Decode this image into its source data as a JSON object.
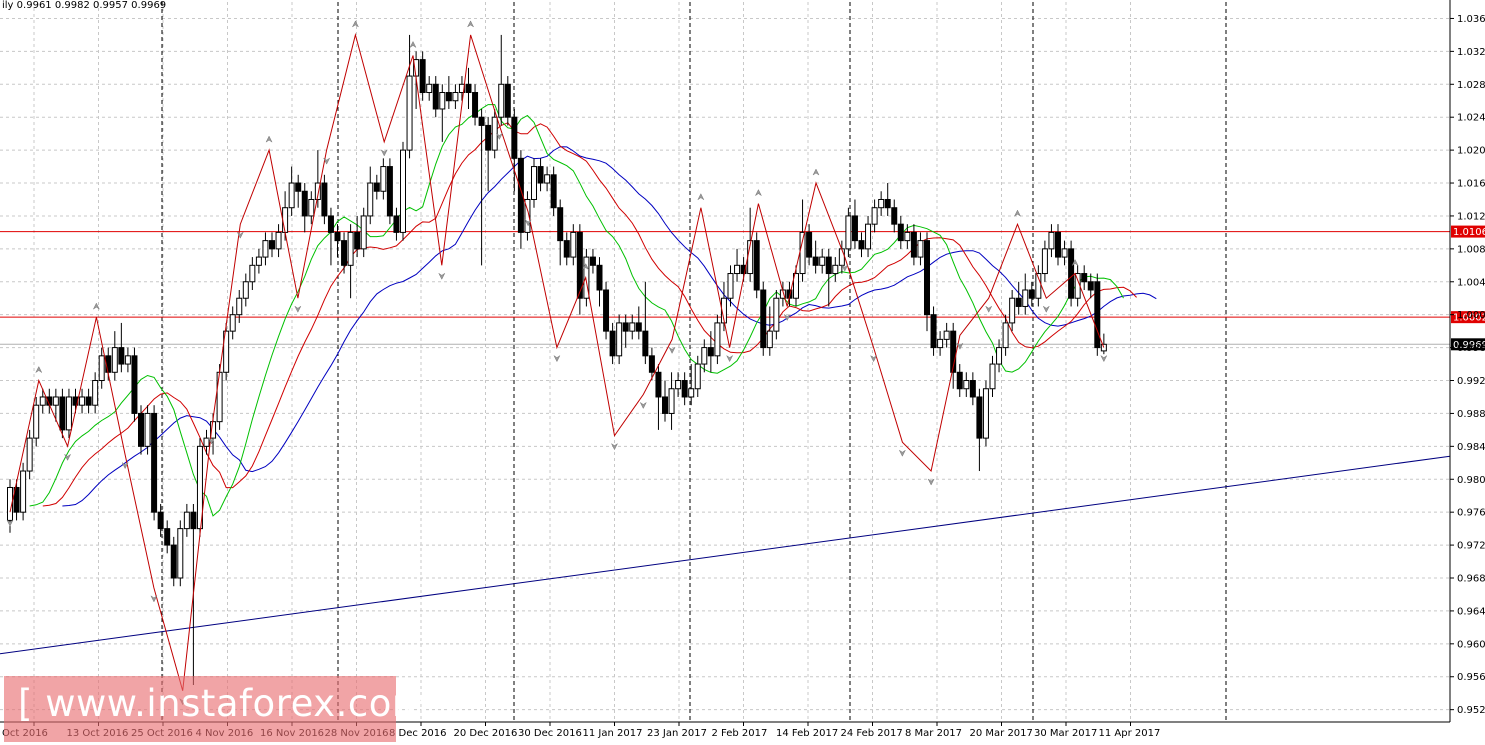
{
  "header": {
    "symbol_period": "ily",
    "ohlc": "0.9961 0.9982 0.9957 0.9969"
  },
  "watermark": {
    "text": "[ www.instaforex.com ]"
  },
  "colors": {
    "background": "#ffffff",
    "grid": "#c8c8c8",
    "period_separator": "#000000",
    "candle_bull": "#ffffff",
    "candle_bear": "#000000",
    "zigzag": "#c00000",
    "alligator_jaw": "#0000c0",
    "alligator_teeth": "#d00000",
    "alligator_lips": "#00c000",
    "horizontal_level": "#e00000",
    "trendline": "#000080"
  },
  "chart_data": {
    "type": "candlestick",
    "instrument_label": "ily",
    "ylim": [
      0.951,
      1.0385
    ],
    "y_ticks": [
      "1.0365",
      "1.0325",
      "1.0285",
      "1.0245",
      "1.0205",
      "1.0165",
      "1.0125",
      "1.0085",
      "1.0045",
      "1.0005",
      "0.9965",
      "0.9925",
      "0.9885",
      "0.9845",
      "0.9805",
      "0.9765",
      "0.9725",
      "0.9685",
      "0.9645",
      "0.9605",
      "0.9565",
      "0.9525"
    ],
    "x_labels": [
      "Oct 2016",
      "13 Oct 2016",
      "25 Oct 2016",
      "4 Nov 2016",
      "16 Nov 2016",
      "28 Nov 2016",
      "8 Dec 2016",
      "20 Dec 2016",
      "30 Dec 2016",
      "11 Jan 2017",
      "23 Jan 2017",
      "2 Feb 2017",
      "14 Feb 2017",
      "24 Feb 2017",
      "8 Mar 2017",
      "20 Mar 2017",
      "30 Mar 2017",
      "11 Apr 2017"
    ],
    "horizontal_levels": [
      {
        "label": "1.0106",
        "value": 1.0106
      },
      {
        "label": "1.0002",
        "value": 1.0002
      }
    ],
    "current_price": {
      "label": "0.9969",
      "value": 0.9969
    },
    "trendline": {
      "start": 0.9593,
      "end": 0.9833
    },
    "zigzag_pivots": [
      0.9765,
      0.9925,
      0.9845,
      1.0002,
      0.9835,
      0.9673,
      0.9548,
      0.9865,
      1.0115,
      1.0205,
      1.0025,
      1.0205,
      1.0345,
      1.0215,
      1.032,
      1.0065,
      1.0345,
      1.0235,
      1.013,
      0.9965,
      1.005,
      0.9858,
      0.9908,
      0.9975,
      1.0135,
      0.9965,
      1.014,
      1.0015,
      1.0165,
      1.0075,
      0.9965,
      0.985,
      0.9815,
      0.998,
      1.0025,
      1.0115,
      1.0025,
      1.0055,
      0.9965
    ],
    "candles": [
      [
        0.9755,
        0.9795,
        0.974,
        0.9805
      ],
      [
        0.9795,
        0.9765,
        0.9755,
        0.9805
      ],
      [
        0.9765,
        0.9815,
        0.9755,
        0.9825
      ],
      [
        0.9815,
        0.9855,
        0.9805,
        0.9865
      ],
      [
        0.9855,
        0.9895,
        0.9845,
        0.9905
      ],
      [
        0.9895,
        0.9905,
        0.9885,
        0.9915
      ],
      [
        0.9905,
        0.9895,
        0.9885,
        0.9915
      ],
      [
        0.9895,
        0.9905,
        0.9875,
        0.9915
      ],
      [
        0.9905,
        0.9865,
        0.9855,
        0.9915
      ],
      [
        0.9865,
        0.9905,
        0.9855,
        0.9915
      ],
      [
        0.9905,
        0.9895,
        0.9885,
        0.9915
      ],
      [
        0.9895,
        0.9905,
        0.9885,
        0.9915
      ],
      [
        0.9905,
        0.9895,
        0.9885,
        0.9915
      ],
      [
        0.9895,
        0.9925,
        0.9885,
        0.9935
      ],
      [
        0.9925,
        0.9955,
        0.9915,
        0.9965
      ],
      [
        0.9955,
        0.9935,
        0.9925,
        0.9965
      ],
      [
        0.9935,
        0.9965,
        0.9925,
        0.9985
      ],
      [
        0.9965,
        0.9945,
        0.9935,
        0.9995
      ],
      [
        0.9945,
        0.9955,
        0.9935,
        0.9965
      ],
      [
        0.9955,
        0.9885,
        0.9875,
        0.9965
      ],
      [
        0.9885,
        0.9845,
        0.9835,
        0.9895
      ],
      [
        0.9845,
        0.9885,
        0.9835,
        0.9895
      ],
      [
        0.9885,
        0.9765,
        0.9755,
        0.9895
      ],
      [
        0.9765,
        0.9745,
        0.9735,
        0.9775
      ],
      [
        0.9745,
        0.9725,
        0.9715,
        0.9755
      ],
      [
        0.9725,
        0.9685,
        0.9675,
        0.9735
      ],
      [
        0.9685,
        0.9745,
        0.9675,
        0.9755
      ],
      [
        0.9745,
        0.9765,
        0.9735,
        0.9775
      ],
      [
        0.9765,
        0.9745,
        0.9555,
        0.9775
      ],
      [
        0.9745,
        0.9845,
        0.9735,
        0.9855
      ],
      [
        0.9845,
        0.9855,
        0.9835,
        0.9865
      ],
      [
        0.9855,
        0.9875,
        0.9835,
        0.9885
      ],
      [
        0.9875,
        0.9935,
        0.9865,
        0.9945
      ],
      [
        0.9935,
        0.9985,
        0.9925,
        0.9995
      ],
      [
        0.9985,
        1.0005,
        0.9975,
        1.0015
      ],
      [
        1.0005,
        1.0025,
        0.9995,
        1.0035
      ],
      [
        1.0025,
        1.0045,
        1.0015,
        1.0055
      ],
      [
        1.0045,
        1.0065,
        1.0035,
        1.0075
      ],
      [
        1.0065,
        1.0075,
        1.0055,
        1.0085
      ],
      [
        1.0075,
        1.0095,
        1.0065,
        1.0105
      ],
      [
        1.0095,
        1.0085,
        1.0075,
        1.0105
      ],
      [
        1.0085,
        1.0105,
        1.0075,
        1.0115
      ],
      [
        1.0105,
        1.0135,
        1.0095,
        1.0155
      ],
      [
        1.0135,
        1.0165,
        1.0125,
        1.0185
      ],
      [
        1.0165,
        1.0155,
        1.0135,
        1.0175
      ],
      [
        1.0155,
        1.0125,
        1.0105,
        1.0165
      ],
      [
        1.0125,
        1.0145,
        1.0115,
        1.0155
      ],
      [
        1.0145,
        1.0165,
        1.0135,
        1.0205
      ],
      [
        1.0165,
        1.0125,
        1.0115,
        1.0175
      ],
      [
        1.0125,
        1.0105,
        1.0065,
        1.0135
      ],
      [
        1.0105,
        1.0095,
        1.0075,
        1.0115
      ],
      [
        1.0095,
        1.0065,
        1.0055,
        1.0105
      ],
      [
        1.0065,
        1.0105,
        1.0025,
        1.0115
      ],
      [
        1.0105,
        1.0085,
        1.0075,
        1.0125
      ],
      [
        1.0085,
        1.0125,
        1.0075,
        1.0135
      ],
      [
        1.0125,
        1.0165,
        1.0115,
        1.0185
      ],
      [
        1.0165,
        1.0155,
        1.0145,
        1.0175
      ],
      [
        1.0155,
        1.0185,
        1.0145,
        1.0195
      ],
      [
        1.0185,
        1.0125,
        1.0115,
        1.0195
      ],
      [
        1.0125,
        1.0105,
        1.0095,
        1.0135
      ],
      [
        1.0105,
        1.0205,
        1.0095,
        1.0215
      ],
      [
        1.0205,
        1.0295,
        1.0195,
        1.0345
      ],
      [
        1.0295,
        1.0315,
        1.0255,
        1.0325
      ],
      [
        1.0315,
        1.0275,
        1.0265,
        1.0325
      ],
      [
        1.0275,
        1.0285,
        1.0265,
        1.0295
      ],
      [
        1.0285,
        1.0255,
        1.0245,
        1.0295
      ],
      [
        1.0255,
        1.0275,
        1.0215,
        1.0285
      ],
      [
        1.0275,
        1.0265,
        1.0255,
        1.0295
      ],
      [
        1.0265,
        1.0275,
        1.0255,
        1.0285
      ],
      [
        1.0275,
        1.0285,
        1.0265,
        1.0295
      ],
      [
        1.0285,
        1.0275,
        1.0255,
        1.0305
      ],
      [
        1.0275,
        1.0245,
        1.0235,
        1.0285
      ],
      [
        1.0245,
        1.0235,
        1.0065,
        1.0255
      ],
      [
        1.0235,
        1.0205,
        1.0155,
        1.0245
      ],
      [
        1.0205,
        1.0245,
        1.0195,
        1.0255
      ],
      [
        1.0245,
        1.0285,
        1.0235,
        1.0345
      ],
      [
        1.0285,
        1.0245,
        1.0235,
        1.0295
      ],
      [
        1.0245,
        1.0195,
        1.0155,
        1.0255
      ],
      [
        1.0195,
        1.0105,
        1.0085,
        1.0205
      ],
      [
        1.0105,
        1.0145,
        1.0095,
        1.0155
      ],
      [
        1.0145,
        1.0185,
        1.0135,
        1.0195
      ],
      [
        1.0185,
        1.0165,
        1.0155,
        1.0195
      ],
      [
        1.0165,
        1.0175,
        1.0155,
        1.0185
      ],
      [
        1.0175,
        1.0135,
        1.0125,
        1.0185
      ],
      [
        1.0135,
        1.0095,
        1.0065,
        1.0145
      ],
      [
        1.0095,
        1.0075,
        1.0065,
        1.0105
      ],
      [
        1.0075,
        1.0105,
        1.0065,
        1.0115
      ],
      [
        1.0105,
        1.0025,
        1.0005,
        1.0115
      ],
      [
        1.0025,
        1.0075,
        1.0015,
        1.0085
      ],
      [
        1.0075,
        1.0065,
        1.0055,
        1.0085
      ],
      [
        1.0065,
        1.0035,
        1.0015,
        1.0075
      ],
      [
        1.0035,
        0.9985,
        0.9975,
        1.0045
      ],
      [
        0.9985,
        0.9955,
        0.9945,
        0.9995
      ],
      [
        0.9955,
        0.9995,
        0.9945,
        1.0005
      ],
      [
        0.9995,
        0.9985,
        0.9965,
        1.0005
      ],
      [
        0.9985,
        0.9995,
        0.9975,
        1.0005
      ],
      [
        0.9995,
        0.9985,
        0.9975,
        1.0015
      ],
      [
        0.9985,
        0.9955,
        0.9945,
        1.0045
      ],
      [
        0.9955,
        0.9935,
        0.9925,
        0.9965
      ],
      [
        0.9935,
        0.9905,
        0.9865,
        0.9945
      ],
      [
        0.9905,
        0.9885,
        0.9875,
        0.9925
      ],
      [
        0.9885,
        0.9915,
        0.9865,
        0.9935
      ],
      [
        0.9915,
        0.9925,
        0.9905,
        0.9935
      ],
      [
        0.9925,
        0.9905,
        0.9895,
        0.9935
      ],
      [
        0.9905,
        0.9915,
        0.9895,
        0.9945
      ],
      [
        0.9915,
        0.9945,
        0.9905,
        0.9955
      ],
      [
        0.9945,
        0.9965,
        0.9935,
        0.9975
      ],
      [
        0.9965,
        0.9955,
        0.9935,
        0.9985
      ],
      [
        0.9955,
        0.9995,
        0.9945,
        1.0005
      ],
      [
        0.9995,
        1.0025,
        0.9985,
        1.0045
      ],
      [
        1.0025,
        1.0055,
        1.0015,
        1.0065
      ],
      [
        1.0055,
        1.0065,
        1.0045,
        1.0085
      ],
      [
        1.0065,
        1.0055,
        1.0045,
        1.0075
      ],
      [
        1.0055,
        1.0095,
        1.0045,
        1.0135
      ],
      [
        1.0095,
        1.0035,
        1.0025,
        1.0105
      ],
      [
        1.0035,
        0.9965,
        0.9955,
        1.0045
      ],
      [
        0.9965,
        0.9985,
        0.9955,
        1.0015
      ],
      [
        0.9985,
        1.0025,
        0.9975,
        1.0035
      ],
      [
        1.0025,
        1.0035,
        1.0015,
        1.0045
      ],
      [
        1.0035,
        1.0025,
        1.0015,
        1.0045
      ],
      [
        1.0025,
        1.0055,
        1.0015,
        1.0065
      ],
      [
        1.0055,
        1.0105,
        1.0045,
        1.0145
      ],
      [
        1.0105,
        1.0075,
        1.0065,
        1.0115
      ],
      [
        1.0075,
        1.0065,
        1.0055,
        1.0095
      ],
      [
        1.0065,
        1.0075,
        1.0055,
        1.0085
      ],
      [
        1.0075,
        1.0055,
        1.0015,
        1.0085
      ],
      [
        1.0055,
        1.0065,
        1.0045,
        1.0075
      ],
      [
        1.0065,
        1.0085,
        1.0055,
        1.0095
      ],
      [
        1.0085,
        1.0125,
        1.0075,
        1.0135
      ],
      [
        1.0125,
        1.0095,
        1.0085,
        1.0145
      ],
      [
        1.0095,
        1.0085,
        1.0075,
        1.0105
      ],
      [
        1.0085,
        1.0115,
        1.0075,
        1.0125
      ],
      [
        1.0115,
        1.0135,
        1.0105,
        1.0145
      ],
      [
        1.0135,
        1.0145,
        1.0125,
        1.0155
      ],
      [
        1.0145,
        1.0135,
        1.0125,
        1.0165
      ],
      [
        1.0135,
        1.0115,
        1.0105,
        1.0145
      ],
      [
        1.0115,
        1.0095,
        1.0085,
        1.0125
      ],
      [
        1.0095,
        1.0105,
        1.0085,
        1.0115
      ],
      [
        1.0105,
        1.0075,
        1.0065,
        1.0115
      ],
      [
        1.0075,
        1.0095,
        1.0065,
        1.0105
      ],
      [
        1.0095,
        1.0005,
        0.9985,
        1.0105
      ],
      [
        1.0005,
        0.9965,
        0.9955,
        1.0015
      ],
      [
        0.9965,
        0.9975,
        0.9955,
        0.9985
      ],
      [
        0.9975,
        0.9985,
        0.9965,
        0.9995
      ],
      [
        0.9985,
        0.9935,
        0.9915,
        0.9995
      ],
      [
        0.9935,
        0.9915,
        0.9905,
        0.9945
      ],
      [
        0.9915,
        0.9925,
        0.9905,
        0.9935
      ],
      [
        0.9925,
        0.9905,
        0.9895,
        0.9935
      ],
      [
        0.9905,
        0.9855,
        0.9815,
        0.9915
      ],
      [
        0.9855,
        0.9915,
        0.9845,
        0.9925
      ],
      [
        0.9915,
        0.9945,
        0.9905,
        0.9955
      ],
      [
        0.9945,
        0.9965,
        0.9935,
        0.9975
      ],
      [
        0.9965,
        0.9995,
        0.9955,
        1.0005
      ],
      [
        0.9995,
        1.0025,
        0.9985,
        1.0035
      ],
      [
        1.0025,
        1.0015,
        1.0005,
        1.0045
      ],
      [
        1.0015,
        1.0035,
        1.0005,
        1.0055
      ],
      [
        1.0035,
        1.0025,
        1.0015,
        1.0045
      ],
      [
        1.0025,
        1.0055,
        1.0015,
        1.0065
      ],
      [
        1.0055,
        1.0085,
        1.0045,
        1.0095
      ],
      [
        1.0085,
        1.0105,
        1.0075,
        1.0115
      ],
      [
        1.0105,
        1.0075,
        1.0065,
        1.0115
      ],
      [
        1.0075,
        1.0085,
        1.0065,
        1.0095
      ],
      [
        1.0085,
        1.0025,
        1.0015,
        1.0095
      ],
      [
        1.0025,
        1.0055,
        1.0015,
        1.0065
      ],
      [
        1.0055,
        1.0045,
        1.0035,
        1.0065
      ],
      [
        1.0045,
        1.0035,
        1.0025,
        1.0055
      ],
      [
        1.0045,
        0.9965,
        0.9955,
        1.0055
      ],
      [
        0.9961,
        0.9969,
        0.9957,
        0.9982
      ]
    ]
  }
}
